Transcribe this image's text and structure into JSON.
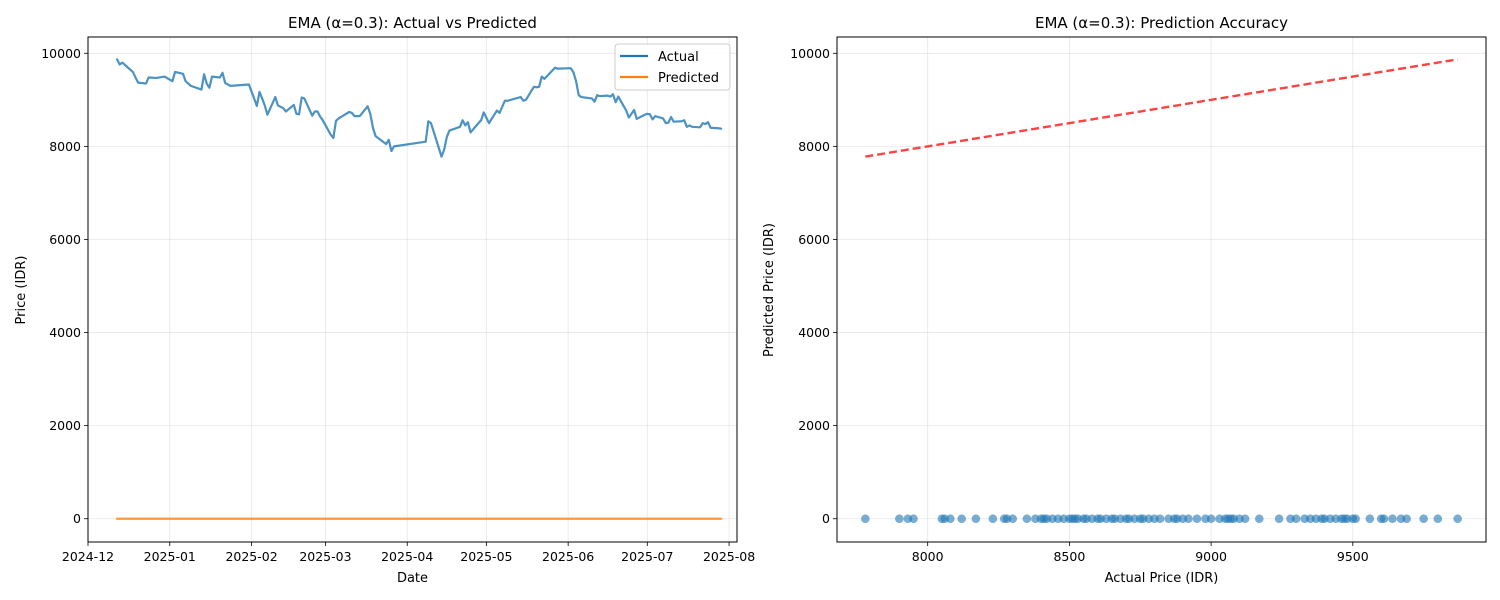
{
  "chart_data": [
    {
      "type": "line",
      "title": "EMA (α=0.3): Actual vs Predicted",
      "xlabel": "Date",
      "ylabel": "Price (IDR)",
      "xlim": [
        "2024-12-01",
        "2025-08-04"
      ],
      "ylim": [
        -500,
        10350
      ],
      "x_ticks": [
        "2024-12",
        "2025-01",
        "2025-02",
        "2025-03",
        "2025-04",
        "2025-05",
        "2025-06",
        "2025-07",
        "2025-08"
      ],
      "y_ticks": [
        0,
        2000,
        4000,
        6000,
        8000,
        10000
      ],
      "grid": true,
      "legend": {
        "position": "top-right",
        "entries": [
          "Actual",
          "Predicted"
        ]
      },
      "colors": {
        "Actual": "#1f77b4",
        "Predicted": "#ff7f0e"
      },
      "series": [
        {
          "name": "Actual",
          "x": [
            "2024-12-12",
            "2024-12-13",
            "2024-12-14",
            "2024-12-16",
            "2024-12-18",
            "2024-12-19",
            "2024-12-20",
            "2024-12-23",
            "2024-12-24",
            "2024-12-27",
            "2024-12-30",
            "2025-01-02",
            "2025-01-03",
            "2025-01-06",
            "2025-01-07",
            "2025-01-09",
            "2025-01-13",
            "2025-01-14",
            "2025-01-15",
            "2025-01-16",
            "2025-01-17",
            "2025-01-20",
            "2025-01-21",
            "2025-01-22",
            "2025-01-24",
            "2025-01-31",
            "2025-02-03",
            "2025-02-04",
            "2025-02-05",
            "2025-02-06",
            "2025-02-07",
            "2025-02-10",
            "2025-02-11",
            "2025-02-12",
            "2025-02-13",
            "2025-02-14",
            "2025-02-17",
            "2025-02-18",
            "2025-02-19",
            "2025-02-20",
            "2025-02-21",
            "2025-02-24",
            "2025-02-25",
            "2025-02-26",
            "2025-02-27",
            "2025-02-28",
            "2025-03-03",
            "2025-03-04",
            "2025-03-05",
            "2025-03-06",
            "2025-03-10",
            "2025-03-11",
            "2025-03-12",
            "2025-03-13",
            "2025-03-14",
            "2025-03-17",
            "2025-03-18",
            "2025-03-19",
            "2025-03-20",
            "2025-03-24",
            "2025-03-25",
            "2025-03-26",
            "2025-03-27",
            "2025-04-08",
            "2025-04-09",
            "2025-04-10",
            "2025-04-14",
            "2025-04-15",
            "2025-04-16",
            "2025-04-17",
            "2025-04-21",
            "2025-04-22",
            "2025-04-23",
            "2025-04-24",
            "2025-04-25",
            "2025-04-28",
            "2025-04-29",
            "2025-04-30",
            "2025-05-02",
            "2025-05-05",
            "2025-05-06",
            "2025-05-07",
            "2025-05-08",
            "2025-05-09",
            "2025-05-14",
            "2025-05-15",
            "2025-05-16",
            "2025-05-19",
            "2025-05-20",
            "2025-05-21",
            "2025-05-22",
            "2025-05-23",
            "2025-05-27",
            "2025-05-28",
            "2025-06-02",
            "2025-06-03",
            "2025-06-04",
            "2025-06-05",
            "2025-06-06",
            "2025-06-10",
            "2025-06-11",
            "2025-06-12",
            "2025-06-13",
            "2025-06-16",
            "2025-06-17",
            "2025-06-18",
            "2025-06-19",
            "2025-06-20",
            "2025-06-23",
            "2025-06-24",
            "2025-06-25",
            "2025-06-26",
            "2025-06-27",
            "2025-06-30",
            "2025-07-01",
            "2025-07-02",
            "2025-07-03",
            "2025-07-04",
            "2025-07-07",
            "2025-07-08",
            "2025-07-09",
            "2025-07-10",
            "2025-07-11",
            "2025-07-14",
            "2025-07-15",
            "2025-07-16",
            "2025-07-17",
            "2025-07-18",
            "2025-07-21",
            "2025-07-22",
            "2025-07-23",
            "2025-07-24",
            "2025-07-25",
            "2025-07-28",
            "2025-07-29"
          ],
          "y": [
            9870,
            9760,
            9800,
            9700,
            9600,
            9480,
            9370,
            9350,
            9480,
            9470,
            9500,
            9400,
            9600,
            9560,
            9400,
            9300,
            9220,
            9550,
            9350,
            9260,
            9500,
            9480,
            9580,
            9360,
            9300,
            9330,
            8870,
            9170,
            9030,
            8880,
            8680,
            9060,
            8880,
            8850,
            8820,
            8750,
            8890,
            8700,
            8690,
            9050,
            9030,
            8660,
            8750,
            8750,
            8640,
            8560,
            8250,
            8180,
            8550,
            8600,
            8740,
            8720,
            8650,
            8650,
            8650,
            8860,
            8700,
            8400,
            8220,
            8050,
            8140,
            7900,
            8000,
            8100,
            8540,
            8500,
            7780,
            7930,
            8200,
            8340,
            8420,
            8560,
            8450,
            8520,
            8300,
            8500,
            8560,
            8730,
            8500,
            8770,
            8720,
            8850,
            8980,
            8980,
            9060,
            8980,
            9000,
            9280,
            9270,
            9280,
            9500,
            9450,
            9690,
            9670,
            9680,
            9590,
            9400,
            9100,
            9060,
            9030,
            8960,
            9100,
            9080,
            9090,
            9070,
            9120,
            8950,
            9070,
            8770,
            8620,
            8700,
            8780,
            8590,
            8680,
            8700,
            8690,
            8580,
            8650,
            8600,
            8500,
            8510,
            8630,
            8530,
            8540,
            8560,
            8420,
            8450,
            8420,
            8410,
            8500,
            8480,
            8520,
            8400,
            8390,
            8380
          ]
        },
        {
          "name": "Predicted",
          "x": [
            "2024-12-12",
            "2025-07-29"
          ],
          "y": [
            0,
            0
          ]
        }
      ]
    },
    {
      "type": "scatter",
      "title": "EMA (α=0.3): Prediction Accuracy",
      "xlabel": "Actual Price (IDR)",
      "ylabel": "Predicted Price (IDR)",
      "xlim": [
        7680,
        9970
      ],
      "ylim": [
        -500,
        10350
      ],
      "x_ticks": [
        8000,
        8500,
        9000,
        9500
      ],
      "y_ticks": [
        0,
        2000,
        4000,
        6000,
        8000,
        10000
      ],
      "grid": true,
      "colors": {
        "points": "#1f77b4",
        "reference": "#ff2222"
      },
      "points": {
        "x": [
          7780,
          7900,
          7930,
          7950,
          8050,
          8060,
          8080,
          8120,
          8170,
          8230,
          8270,
          8280,
          8300,
          8350,
          8380,
          8400,
          8410,
          8420,
          8440,
          8460,
          8480,
          8500,
          8510,
          8520,
          8530,
          8550,
          8560,
          8580,
          8600,
          8610,
          8630,
          8650,
          8660,
          8680,
          8700,
          8710,
          8730,
          8750,
          8760,
          8780,
          8800,
          8820,
          8850,
          8870,
          8880,
          8900,
          8920,
          8950,
          8980,
          9000,
          9030,
          9050,
          9060,
          9070,
          9080,
          9100,
          9120,
          9170,
          9240,
          9280,
          9300,
          9330,
          9350,
          9370,
          9390,
          9400,
          9420,
          9440,
          9460,
          9470,
          9480,
          9500,
          9510,
          9560,
          9600,
          9610,
          9640,
          9670,
          9690,
          9750,
          9800,
          9870
        ],
        "y": [
          0,
          0,
          0,
          0,
          0,
          0,
          0,
          0,
          0,
          0,
          0,
          0,
          0,
          0,
          0,
          0,
          0,
          0,
          0,
          0,
          0,
          0,
          0,
          0,
          0,
          0,
          0,
          0,
          0,
          0,
          0,
          0,
          0,
          0,
          0,
          0,
          0,
          0,
          0,
          0,
          0,
          0,
          0,
          0,
          0,
          0,
          0,
          0,
          0,
          0,
          0,
          0,
          0,
          0,
          0,
          0,
          0,
          0,
          0,
          0,
          0,
          0,
          0,
          0,
          0,
          0,
          0,
          0,
          0,
          0,
          0,
          0,
          0,
          0,
          0,
          0,
          0,
          0,
          0,
          0,
          0,
          0
        ]
      },
      "reference_line": {
        "style": "dashed",
        "x": [
          7780,
          9870
        ],
        "y": [
          7780,
          9870
        ]
      }
    }
  ]
}
